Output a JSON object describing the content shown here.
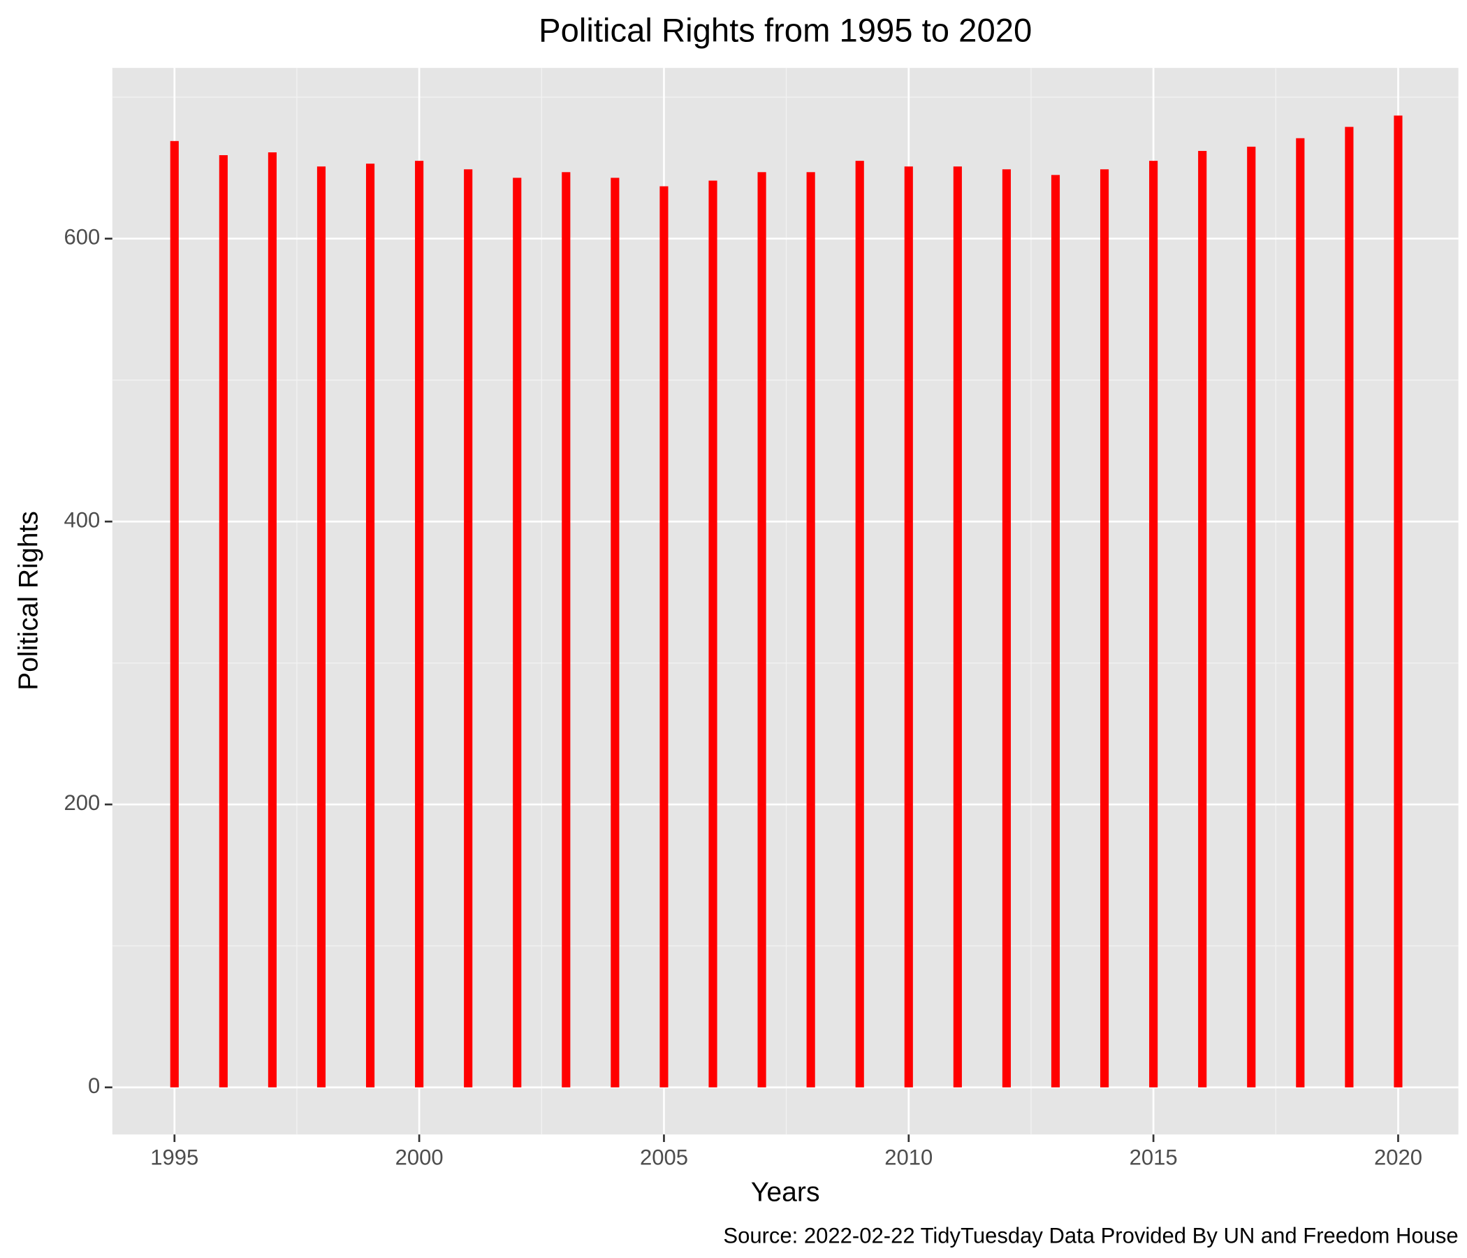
{
  "chart_data": {
    "type": "bar",
    "title": "Political Rights from 1995 to 2020",
    "x_label": "Years",
    "y_label": "Political Rights",
    "caption": "Source: 2022-02-22 TidyTuesday Data Provided By UN and Freedom House",
    "x": [
      1995,
      1996,
      1997,
      1998,
      1999,
      2000,
      2001,
      2002,
      2003,
      2004,
      2005,
      2006,
      2007,
      2008,
      2009,
      2010,
      2011,
      2012,
      2013,
      2014,
      2015,
      2016,
      2017,
      2018,
      2019,
      2020
    ],
    "values": [
      669,
      659,
      661,
      651,
      653,
      655,
      649,
      643,
      647,
      643,
      637,
      641,
      647,
      647,
      655,
      651,
      651,
      649,
      645,
      649,
      655,
      662,
      665,
      671,
      679,
      687
    ],
    "color": "#ff0000",
    "xlim": [
      1993.73,
      2021.23
    ],
    "xticks": [
      1995,
      2000,
      2005,
      2010,
      2015,
      2020
    ],
    "x_minor_ticks": [
      1997.5,
      2002.5,
      2007.5,
      2012.5,
      2017.5
    ],
    "ylim": [
      -33.3,
      720.7
    ],
    "yticks": [
      0,
      200,
      400,
      600
    ],
    "y_minor_ticks": [
      100,
      300,
      500,
      700
    ],
    "grid": true
  }
}
